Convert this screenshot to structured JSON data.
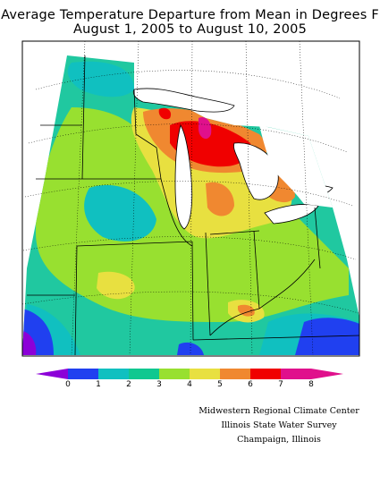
{
  "title": {
    "line1": "Average Temperature Departure from Mean in Degrees F",
    "line2": "August 1, 2005 to August 10, 2005"
  },
  "legend": {
    "labels": [
      "0",
      "1",
      "2",
      "3",
      "4",
      "5",
      "6",
      "7",
      "8"
    ],
    "colors": [
      "#8c00d8",
      "#2040f0",
      "#10c0c0",
      "#10c890",
      "#98e030",
      "#e8e040",
      "#f08830",
      "#f00000",
      "#e0108c"
    ]
  },
  "credits": {
    "line1": "Midwestern Regional Climate Center",
    "line2": "Illinois State Water Survey",
    "line3": "Champaign, Illinois"
  },
  "map_colors": {
    "background": "#20c8a0",
    "water": "#ffffff",
    "boundary": "#000000"
  }
}
